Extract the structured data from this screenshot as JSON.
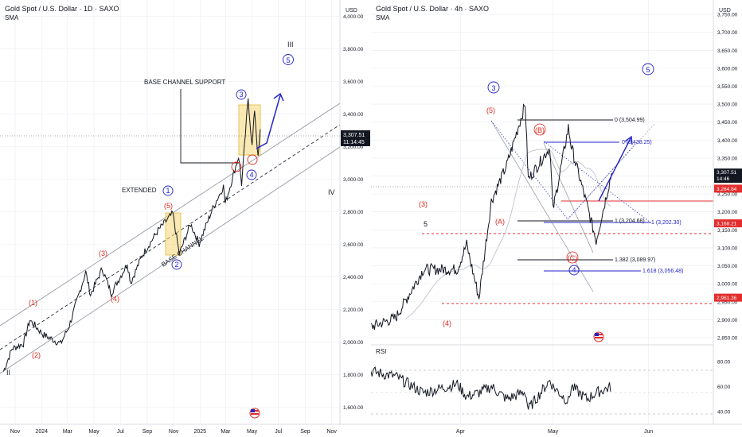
{
  "colors": {
    "red_label": "#e0291d",
    "blue_label": "#2323c8",
    "price_line": "#131722",
    "grid": "#e9ecf2",
    "channel": "#8a8f99",
    "box_fill": "#f6d774",
    "axis_bg": "#ffffff",
    "price_tag": "#131722",
    "red_tag": "#e32d2d"
  },
  "chart_data": [
    {
      "type": "line",
      "title": "Gold Spot / U.S. Dollar · 1D · SAXO",
      "subtitle": "SMA",
      "currency_label": "USD",
      "y_ticks": [
        "4,000.00",
        "3,800.00",
        "3,600.00",
        "3,400.00",
        "3,200.00",
        "3,000.00",
        "2,800.00",
        "2,600.00",
        "2,400.00",
        "2,200.00",
        "2,000.00",
        "1,800.00",
        "1,600.00"
      ],
      "ylim": [
        1500,
        4100
      ],
      "x_ticks": [
        "Nov",
        "2024",
        "Mar",
        "May",
        "Jul",
        "Sep",
        "Nov",
        "2025",
        "Mar",
        "May",
        "Jul",
        "Sep",
        "Nov"
      ],
      "series": [
        {
          "x": [
            "2023-10-05",
            "2023-10-25",
            "2023-11-20",
            "2023-12-05",
            "2024-01-05",
            "2024-02-14",
            "2024-03-05",
            "2024-04-12",
            "2024-04-23",
            "2024-05-20",
            "2024-06-10",
            "2024-07-17",
            "2024-07-25",
            "2024-08-20",
            "2024-09-26",
            "2024-10-30",
            "2024-11-14",
            "2024-12-10",
            "2024-12-30",
            "2025-01-30",
            "2025-02-24",
            "2025-02-28",
            "2025-03-31",
            "2025-04-07",
            "2025-04-22",
            "2025-05-01",
            "2025-05-07",
            "2025-05-15",
            "2025-05-20"
          ],
          "values": [
            1820,
            1960,
            1990,
            2135,
            2045,
            1990,
            2100,
            2430,
            2290,
            2450,
            2300,
            2480,
            2365,
            2530,
            2685,
            2790,
            2540,
            2725,
            2605,
            2820,
            2955,
            2850,
            3140,
            2970,
            3500,
            3200,
            3430,
            3125,
            3307.51
          ]
        }
      ],
      "wave_labels": [
        {
          "text": "II",
          "color": "black"
        },
        {
          "text": "(1)",
          "color": "red"
        },
        {
          "text": "(2)",
          "color": "red"
        },
        {
          "text": "(3)",
          "color": "red"
        },
        {
          "text": "(4)",
          "color": "red"
        },
        {
          "text": "(5)",
          "color": "red"
        },
        {
          "text": "1",
          "color": "blue"
        },
        {
          "text": "2",
          "color": "blue"
        },
        {
          "text": "3",
          "color": "blue"
        },
        {
          "text": "4",
          "color": "blue"
        },
        {
          "text": "5",
          "color": "blue"
        },
        {
          "text": "III",
          "color": "black"
        },
        {
          "text": "IV",
          "color": "black"
        }
      ],
      "annotations": [
        "EXTENDED",
        "BASE CHANNEL SUPPORT",
        "BASE CHANNEL"
      ],
      "last_price": "3,307.51",
      "countdown": "11:14:45"
    },
    {
      "type": "line",
      "title": "Gold Spot / U.S. Dollar · 4h · SAXO",
      "subtitle": "SMA",
      "currency_label": "USD",
      "y_ticks": [
        "3,750.00",
        "3,700.00",
        "3,650.00",
        "3,600.00",
        "3,550.00",
        "3,500.00",
        "3,450.00",
        "3,400.00",
        "3,350.00",
        "3,300.00",
        "3,250.00",
        "3,200.00",
        "3,150.00",
        "3,100.00",
        "3,050.00",
        "3,000.00",
        "2,950.00",
        "2,900.00",
        "2,850.00"
      ],
      "ylim": [
        2830,
        3790
      ],
      "x_ticks": [
        "Apr",
        "May",
        "Jun"
      ],
      "series": [
        {
          "x": [
            "2025-03-03",
            "2025-03-11",
            "2025-03-20",
            "2025-03-31",
            "2025-04-03",
            "2025-04-07",
            "2025-04-11",
            "2025-04-16",
            "2025-04-22",
            "2025-04-23",
            "2025-04-30",
            "2025-05-01",
            "2025-05-06",
            "2025-05-07",
            "2025-05-12",
            "2025-05-15",
            "2025-05-20"
          ],
          "values": [
            2880,
            2905,
            3040,
            3040,
            3110,
            2960,
            3230,
            3330,
            3500,
            3290,
            3380,
            3205,
            3435,
            3380,
            3220,
            3120,
            3307.51
          ]
        }
      ],
      "wave_labels": [
        {
          "text": "5",
          "color": "black"
        },
        {
          "text": "(3)",
          "color": "red"
        },
        {
          "text": "(4)",
          "color": "red"
        },
        {
          "text": "(5)",
          "color": "red"
        },
        {
          "text": "(A)",
          "color": "red"
        },
        {
          "text": "(B)",
          "color": "red"
        },
        {
          "text": "(C)",
          "color": "red"
        },
        {
          "text": "3",
          "color": "blue"
        },
        {
          "text": "4",
          "color": "blue"
        },
        {
          "text": "5",
          "color": "blue"
        }
      ],
      "fib_levels": [
        {
          "text": "0 (3,504.99)",
          "value": 3504.99,
          "color": "black"
        },
        {
          "text": "0 (3,438.25)",
          "value": 3438.25,
          "color": "blue"
        },
        {
          "text": "1 (3,204.68)",
          "value": 3204.68,
          "color": "black"
        },
        {
          "text": "1 (3,202.30)",
          "value": 3202.3,
          "color": "blue"
        },
        {
          "text": "1.382 (3,089.97)",
          "value": 3089.97,
          "color": "black"
        },
        {
          "text": "1.618 (3,056.48)",
          "value": 3056.48,
          "color": "blue"
        }
      ],
      "price_tags": [
        {
          "text": "3,307.51",
          "value": 3307.51,
          "kind": "dark"
        },
        {
          "text": "14:46",
          "value": 3307.51,
          "kind": "dark_sub"
        },
        {
          "text": "3,264.84",
          "value": 3264.84,
          "kind": "red"
        },
        {
          "text": "3,168.21",
          "value": 3168.21,
          "kind": "red"
        },
        {
          "text": "2,961.36",
          "value": 2961.36,
          "kind": "red"
        }
      ],
      "rsi": {
        "label": "RSI",
        "y_ticks": [
          "80.00",
          "60.00",
          "40.00"
        ],
        "ylim": [
          30,
          90
        ],
        "values": [
          72,
          68,
          55,
          62,
          52,
          55,
          60,
          50,
          56,
          42,
          65,
          60,
          48,
          60,
          50,
          55,
          60
        ]
      }
    }
  ]
}
